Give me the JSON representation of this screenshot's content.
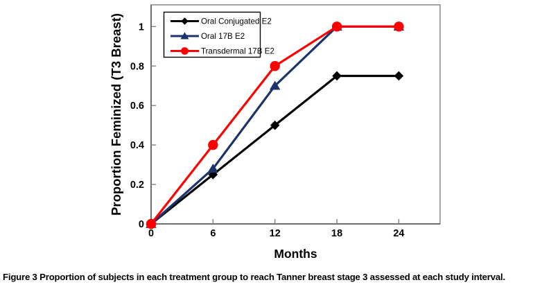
{
  "figure": {
    "caption_label": "Figure 3",
    "caption_text": "Proportion of subjects in each treatment group to reach Tanner breast stage 3 assessed at each study interval."
  },
  "chart_data": {
    "type": "line",
    "title": "",
    "xlabel": "Months",
    "ylabel": "Proportion Feminized (T3 Breast)",
    "x": [
      0,
      6,
      12,
      18,
      24
    ],
    "x_tick_labels": [
      "0",
      "6",
      "12",
      "18",
      "24"
    ],
    "y_ticks": [
      0,
      0.2,
      0.4,
      0.6,
      0.8,
      1
    ],
    "y_tick_labels": [
      "0",
      "0.2",
      "0.4",
      "0.6",
      "0.8",
      "1"
    ],
    "xlim": [
      0,
      28
    ],
    "ylim": [
      0,
      1.11
    ],
    "grid": false,
    "legend_position": "top-left-inside",
    "series": [
      {
        "name": "Oral Conjugated E2",
        "marker": "diamond",
        "color": "#000000",
        "values": [
          0,
          0.25,
          0.5,
          0.75,
          0.75
        ]
      },
      {
        "name": "Oral 17B E2",
        "marker": "triangle",
        "color": "#1b336b",
        "values": [
          0,
          0.28,
          0.7,
          1,
          1
        ]
      },
      {
        "name": "Transdermal 17B E2",
        "marker": "circle",
        "color": "#fe0000",
        "values": [
          0,
          0.4,
          0.8,
          1,
          1
        ]
      }
    ],
    "axis_color": "#7f7f7f",
    "tick_label_color": "#000000"
  }
}
